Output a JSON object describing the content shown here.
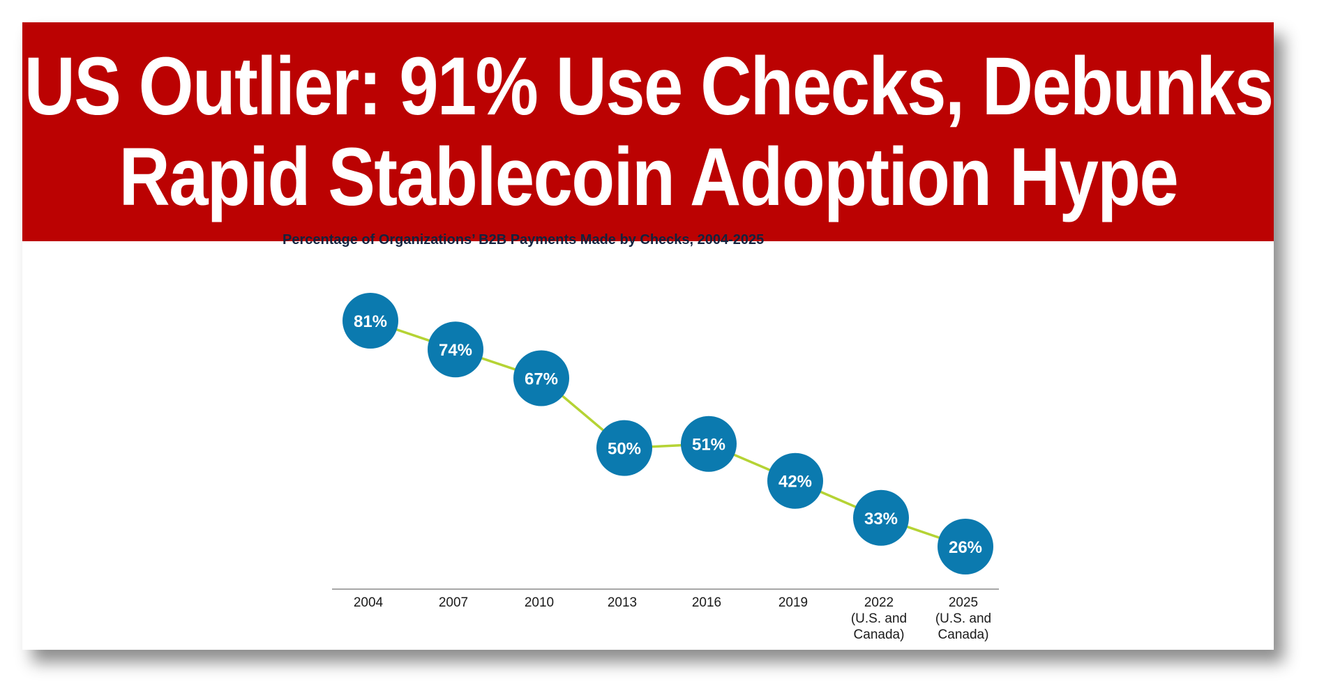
{
  "headline": {
    "line1": "US Outlier: 91% Use Checks, Debunks",
    "line2": "Rapid Stablecoin Adoption Hype"
  },
  "colors": {
    "banner": "#bb0202",
    "dot": "#0b7aaf",
    "line": "#b5d334",
    "axis": "#8a8a8a"
  },
  "chart_data": {
    "type": "line",
    "title": "Percentage of Organizations’ B2B Payments Made by Checks, 2004-2025",
    "xlabel": "",
    "ylabel": "",
    "categories": [
      [
        "2004"
      ],
      [
        "2007"
      ],
      [
        "2010"
      ],
      [
        "2013"
      ],
      [
        "2016"
      ],
      [
        "2019"
      ],
      [
        "2022",
        "(U.S. and",
        "Canada)"
      ],
      [
        "2025",
        "(U.S. and",
        "Canada)"
      ]
    ],
    "values": [
      81,
      74,
      67,
      50,
      51,
      42,
      33,
      26
    ],
    "data_labels": [
      "81%",
      "74%",
      "67%",
      "50%",
      "51%",
      "42%",
      "33%",
      "26%"
    ],
    "ylim": [
      20,
      85
    ],
    "grid": false,
    "legend": "none"
  }
}
